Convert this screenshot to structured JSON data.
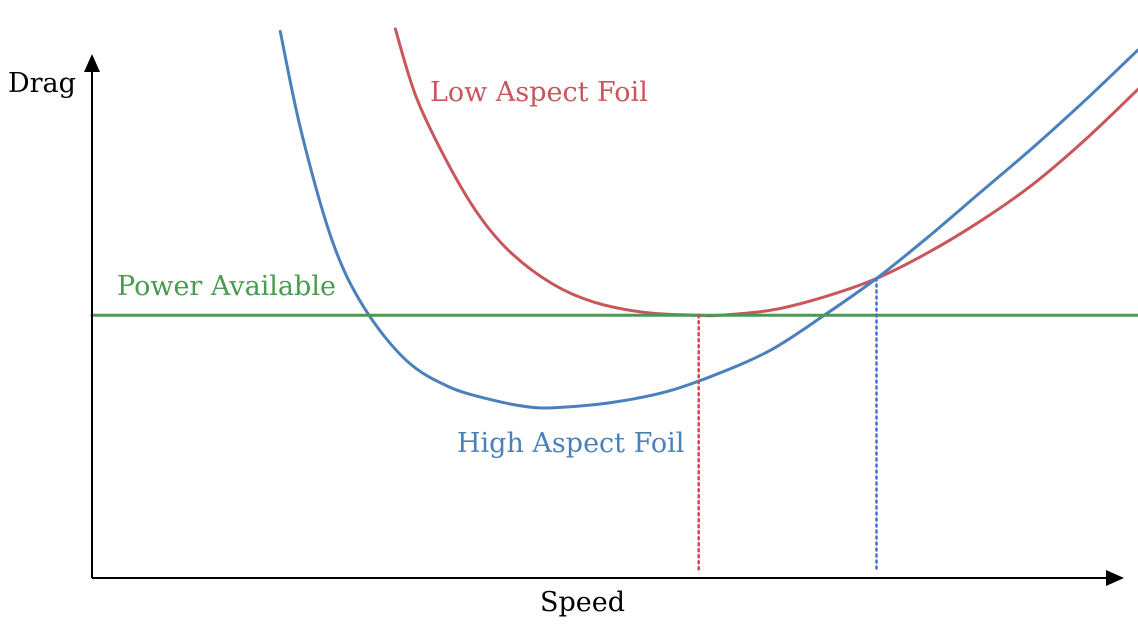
{
  "chart_data": {
    "type": "line",
    "title": "",
    "xlabel": "Speed",
    "ylabel": "Drag",
    "x_ticks": [],
    "y_ticks": [],
    "grid": false,
    "series": [
      {
        "name": "Low Aspect Foil",
        "color": "#c9565a",
        "x": [
          0.29,
          0.31,
          0.34,
          0.37,
          0.4,
          0.44,
          0.48,
          0.53,
          0.58,
          0.6,
          0.65,
          0.7,
          0.75,
          0.8,
          0.85,
          0.9,
          0.95,
          1.0
        ],
        "y": [
          2.09,
          1.83,
          1.58,
          1.38,
          1.24,
          1.12,
          1.05,
          1.01,
          1.0,
          1.0,
          1.02,
          1.07,
          1.14,
          1.24,
          1.36,
          1.5,
          1.67,
          1.86
        ]
      },
      {
        "name": "High Aspect Foil",
        "color": "#4a80bb",
        "x": [
          0.18,
          0.2,
          0.23,
          0.26,
          0.3,
          0.34,
          0.38,
          0.42,
          0.45,
          0.5,
          0.55,
          0.6,
          0.65,
          0.7,
          0.75,
          0.8,
          0.85,
          0.9,
          0.95,
          1.0
        ],
        "y": [
          2.08,
          1.7,
          1.28,
          1.03,
          0.83,
          0.73,
          0.68,
          0.65,
          0.65,
          0.67,
          0.71,
          0.78,
          0.87,
          1.0,
          1.14,
          1.3,
          1.47,
          1.64,
          1.82,
          2.01
        ]
      },
      {
        "name": "Power Available",
        "color": "#4a9a4f",
        "x": [
          0.0,
          1.0
        ],
        "y": [
          1.0,
          1.0
        ]
      }
    ],
    "reference_lines": [
      {
        "series": "Low Aspect Foil",
        "x": 0.58,
        "y": 1.0,
        "color": "#d6404f"
      },
      {
        "series": "High Aspect Foil",
        "x": 0.75,
        "y": 1.14,
        "color": "#4b6bd6"
      }
    ],
    "xlim": [
      0.0,
      1.0
    ],
    "ylim": [
      0.0,
      2.2
    ],
    "legend": "none",
    "annotations": {
      "low_label": "Low Aspect Foil",
      "high_label": "High Aspect Foil",
      "power_label": "Power Available"
    },
    "axis_color": "#000000"
  }
}
